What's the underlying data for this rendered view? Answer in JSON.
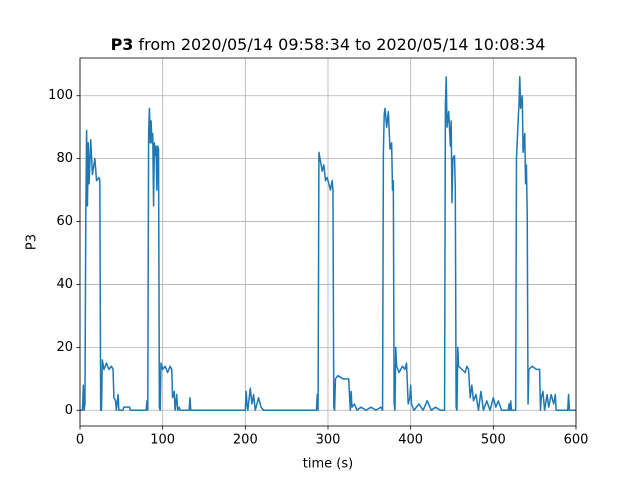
{
  "chart_data": {
    "type": "line",
    "title_bold": "P3",
    "title": "from 2020/05/14 09:58:34 to 2020/05/14 10:08:34",
    "xlabel": "time (s)",
    "ylabel": "P3",
    "xlim": [
      0,
      600
    ],
    "ylim": [
      -5,
      112
    ],
    "xticks": [
      0,
      100,
      200,
      300,
      400,
      500,
      600
    ],
    "yticks": [
      0,
      20,
      40,
      60,
      80,
      100
    ],
    "grid": true,
    "x": [
      0,
      3,
      4,
      5,
      6,
      7,
      8,
      9,
      10,
      11,
      13,
      15,
      18,
      20,
      23,
      24,
      25,
      26,
      27,
      29,
      32,
      35,
      38,
      40,
      41,
      43,
      44,
      46,
      47,
      52,
      53,
      60,
      61,
      80,
      81,
      82,
      83,
      84,
      85,
      86,
      87,
      88,
      89,
      90,
      91,
      92,
      93,
      94,
      95,
      96,
      97,
      98,
      100,
      103,
      106,
      109,
      111,
      112,
      114,
      115,
      117,
      118,
      120,
      121,
      132,
      133,
      134,
      200,
      201,
      202,
      203,
      206,
      208,
      210,
      212,
      216,
      219,
      222,
      286,
      287,
      288,
      289,
      291,
      293,
      295,
      297,
      299,
      301,
      303,
      305,
      306,
      307,
      308,
      309,
      312,
      318,
      325,
      327,
      328,
      329,
      332,
      335,
      340,
      346,
      352,
      358,
      364,
      366,
      367,
      368,
      369,
      371,
      373,
      375,
      377,
      378,
      379,
      380,
      381,
      382,
      383,
      386,
      390,
      393,
      395,
      397,
      399,
      400,
      401,
      404,
      410,
      415,
      420,
      425,
      430,
      436,
      441,
      442,
      443,
      444,
      446,
      448,
      449,
      450,
      451,
      453,
      454,
      455,
      456,
      457,
      458,
      462,
      466,
      468,
      470,
      472,
      474,
      476,
      479,
      482,
      485,
      488,
      492,
      496,
      500,
      503,
      506,
      510,
      518,
      519,
      520,
      521,
      522,
      527,
      528,
      530,
      531,
      532,
      533,
      535,
      536,
      538,
      539,
      540,
      541,
      542,
      543,
      547,
      552,
      556,
      557,
      558,
      560,
      562,
      565,
      567,
      570,
      573,
      575,
      576,
      590,
      591,
      592,
      600
    ],
    "series": [
      {
        "name": "P3",
        "color": "#1f77b4",
        "values": [
          0,
          0,
          8,
          0,
          2,
          62,
          89,
          65,
          85,
          72,
          86,
          75,
          80,
          73,
          74,
          73,
          0,
          0,
          16,
          13,
          15,
          13,
          14,
          13,
          4,
          3,
          0,
          5,
          0,
          0,
          1,
          1,
          0,
          0,
          3,
          0,
          88,
          96,
          85,
          92,
          85,
          88,
          65,
          85,
          81,
          84,
          70,
          84,
          83,
          1,
          0,
          15,
          13,
          14,
          12,
          14,
          13,
          4,
          6,
          0,
          5,
          0,
          1,
          0,
          0,
          4,
          0,
          0,
          6,
          2,
          0,
          7,
          2,
          5,
          0,
          4,
          1,
          0,
          0,
          5,
          0,
          82,
          79,
          76,
          78,
          73,
          74,
          72,
          70,
          73,
          70,
          1,
          0,
          10,
          11,
          10,
          10,
          0,
          6,
          1,
          2,
          0,
          1,
          0,
          1,
          0,
          1,
          0,
          82,
          94,
          96,
          90,
          95,
          83,
          85,
          70,
          73,
          2,
          0,
          20,
          14,
          12,
          14,
          13,
          15,
          2,
          4,
          8,
          2,
          0,
          2,
          0,
          3,
          0,
          1,
          0,
          0,
          97,
          106,
          90,
          95,
          84,
          92,
          66,
          80,
          81,
          70,
          1,
          0,
          20,
          14,
          13,
          12,
          14,
          13,
          4,
          8,
          3,
          5,
          0,
          6,
          0,
          3,
          0,
          4,
          1,
          3,
          0,
          0,
          2,
          0,
          3,
          0,
          0,
          80,
          92,
          97,
          106,
          96,
          100,
          82,
          88,
          72,
          78,
          62,
          2,
          13,
          14,
          13,
          13,
          0,
          4,
          6,
          0,
          5,
          1,
          5,
          2,
          5,
          0,
          0,
          5,
          0,
          0
        ]
      }
    ]
  }
}
